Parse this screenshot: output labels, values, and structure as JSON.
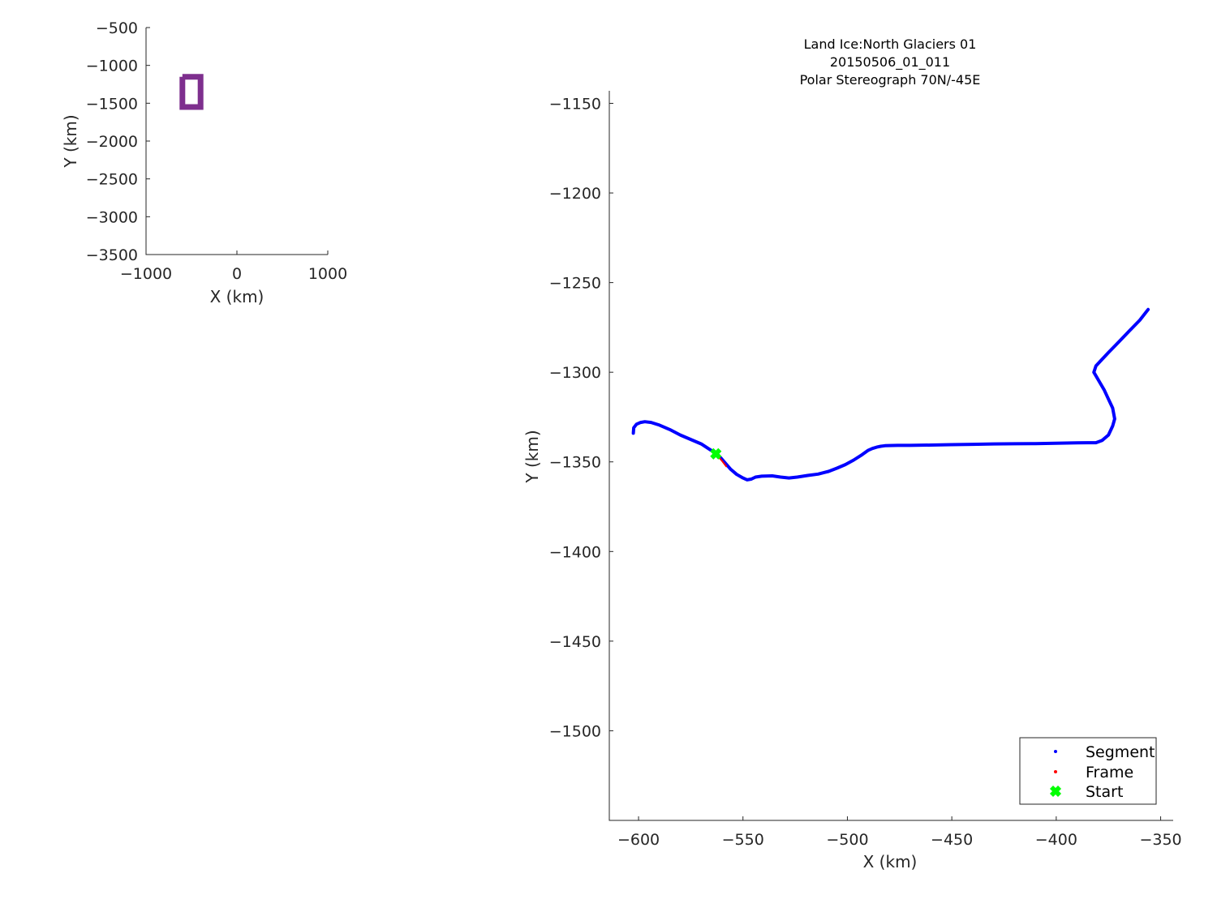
{
  "chart_data": [
    {
      "type": "line",
      "xlabel": "X (km)",
      "ylabel": "Y (km)",
      "xlim": [
        -1000,
        1000
      ],
      "ylim": [
        -3500,
        -500
      ],
      "xticks": [
        -1000,
        0,
        1000
      ],
      "yticks": [
        -500,
        -1000,
        -1500,
        -2000,
        -2500,
        -3000,
        -3500
      ],
      "series": [
        {
          "color": "#7e2f8e",
          "x": [
            -600,
            -400,
            -400,
            -600,
            -600
          ],
          "y": [
            -1150,
            -1150,
            -1550,
            -1550,
            -1150
          ]
        }
      ]
    },
    {
      "type": "line",
      "title": [
        "Land Ice:North Glaciers 01",
        "20150506_01_011",
        "Polar Stereograph 70N/-45E"
      ],
      "xlabel": "X (km)",
      "ylabel": "Y (km)",
      "xlim": [
        -614,
        -344
      ],
      "ylim": [
        -1550,
        -1143
      ],
      "xticks": [
        -600,
        -550,
        -500,
        -450,
        -400,
        -350
      ],
      "yticks": [
        -1150,
        -1200,
        -1250,
        -1300,
        -1350,
        -1400,
        -1450,
        -1500
      ],
      "legend_position": "bottom-right",
      "legend": [
        "Segment",
        "Frame",
        "Start"
      ],
      "series": [
        {
          "name": "Segment",
          "color": "#0000ff",
          "x": [
            -602.5,
            -602.3,
            -601,
            -599,
            -597,
            -594,
            -590,
            -585,
            -580,
            -575,
            -570,
            -566,
            -562,
            -559,
            -556,
            -553,
            -550,
            -548,
            -546,
            -544,
            -541,
            -536,
            -532,
            -528,
            -524,
            -519,
            -514,
            -509,
            -505,
            -501,
            -497,
            -493,
            -490,
            -488,
            -486,
            -484,
            -482,
            -480,
            -476,
            -470,
            -460,
            -450,
            -440,
            -430,
            -420,
            -410,
            -400,
            -390,
            -385,
            -381,
            -378,
            -375,
            -373,
            -372,
            -373,
            -375,
            -377,
            -379,
            -381,
            -382,
            -381,
            -379,
            -375,
            -370,
            -365,
            -360,
            -356
          ],
          "y": [
            -1334,
            -1331,
            -1329,
            -1328,
            -1327.6,
            -1328,
            -1329.5,
            -1332,
            -1335,
            -1337.5,
            -1340,
            -1343,
            -1346,
            -1350,
            -1354,
            -1357,
            -1359,
            -1360,
            -1359.6,
            -1358.5,
            -1358,
            -1357.8,
            -1358.5,
            -1359,
            -1358.5,
            -1357.6,
            -1356.8,
            -1355.3,
            -1353.5,
            -1351.5,
            -1349,
            -1346,
            -1343.5,
            -1342.5,
            -1341.8,
            -1341.3,
            -1341,
            -1340.9,
            -1340.8,
            -1340.8,
            -1340.6,
            -1340.4,
            -1340.2,
            -1340,
            -1339.9,
            -1339.8,
            -1339.6,
            -1339.4,
            -1339.3,
            -1339.3,
            -1338,
            -1335,
            -1330,
            -1326,
            -1320,
            -1315,
            -1310,
            -1306,
            -1302,
            -1300,
            -1296.5,
            -1294,
            -1289,
            -1283,
            -1277,
            -1271,
            -1265
          ]
        },
        {
          "name": "Frame",
          "color": "#ff0000",
          "x": [
            -563,
            -560,
            -558
          ],
          "y": [
            -1345.5,
            -1349.5,
            -1352.5
          ]
        },
        {
          "name": "Start",
          "color": "#00ff00",
          "x": [
            -563
          ],
          "y": [
            -1345.5
          ]
        }
      ]
    }
  ]
}
